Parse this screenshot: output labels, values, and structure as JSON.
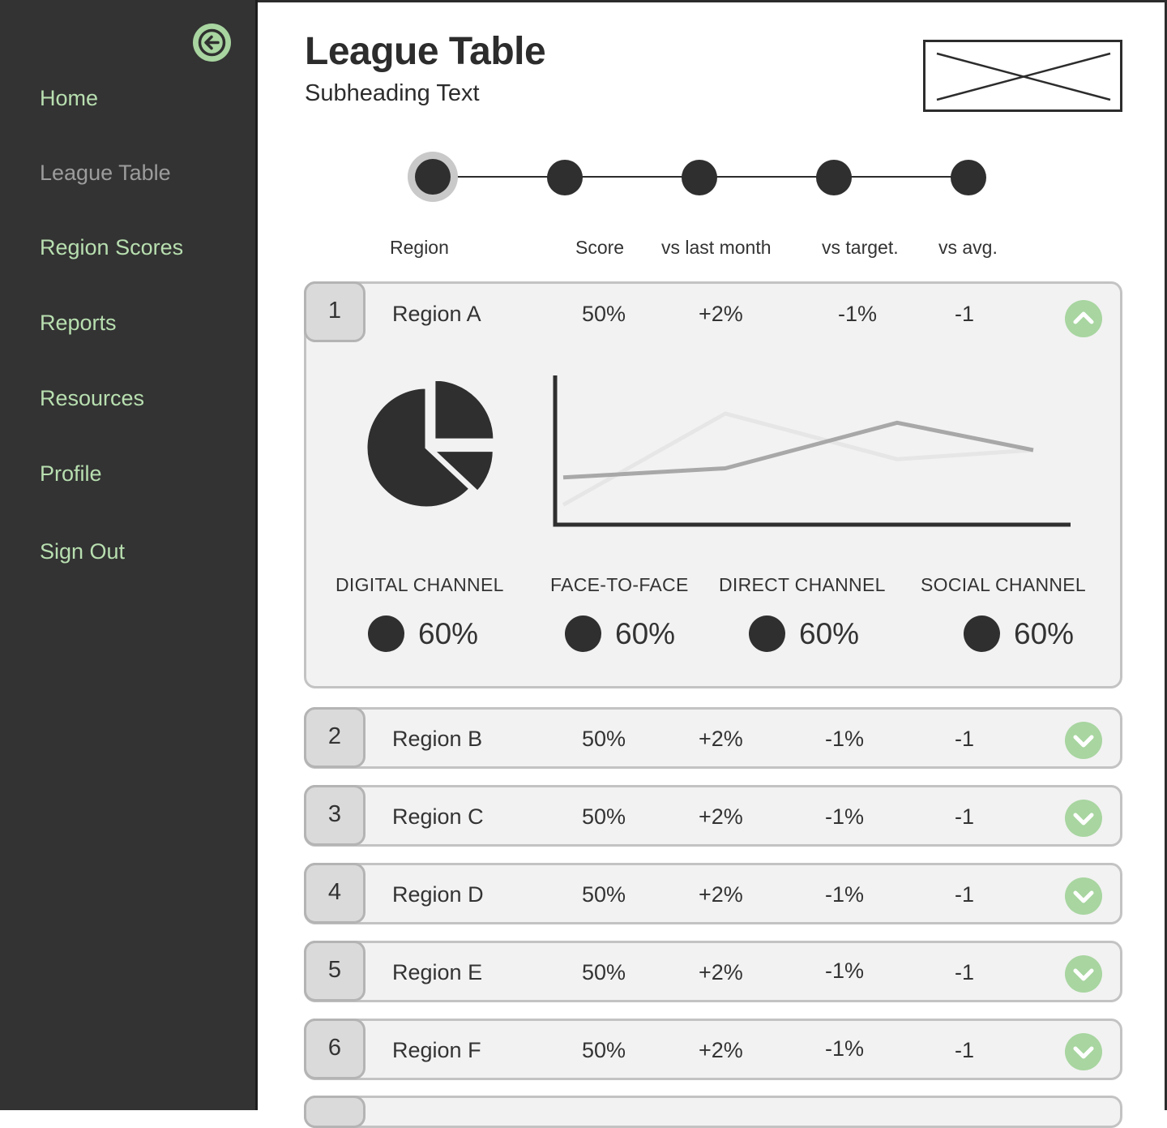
{
  "sidebar": {
    "back_icon": "arrow-left-icon",
    "items": [
      {
        "label": "Home",
        "active": false
      },
      {
        "label": "League Table",
        "active": true
      },
      {
        "label": "Region Scores",
        "active": false
      },
      {
        "label": "Reports",
        "active": false
      },
      {
        "label": "Resources",
        "active": false
      },
      {
        "label": "Profile",
        "active": false
      },
      {
        "label": "Sign Out",
        "active": false
      }
    ]
  },
  "header": {
    "title": "League Table",
    "subtitle": "Subheading Text",
    "logo_icon": "image-placeholder-icon"
  },
  "stepper": {
    "steps": 5,
    "active_index": 0
  },
  "table": {
    "columns": [
      "Region",
      "Score",
      "vs last month",
      "vs target.",
      "vs avg."
    ],
    "rows": [
      {
        "rank": "1",
        "region": "Region A",
        "score": "50%",
        "vs_last_month": "+2%",
        "vs_target": "-1%",
        "vs_avg": "-1",
        "expanded": true
      },
      {
        "rank": "2",
        "region": "Region B",
        "score": "50%",
        "vs_last_month": "+2%",
        "vs_target": "-1%",
        "vs_avg": "-1",
        "expanded": false
      },
      {
        "rank": "3",
        "region": "Region C",
        "score": "50%",
        "vs_last_month": "+2%",
        "vs_target": "-1%",
        "vs_avg": "-1",
        "expanded": false
      },
      {
        "rank": "4",
        "region": "Region D",
        "score": "50%",
        "vs_last_month": "+2%",
        "vs_target": "-1%",
        "vs_avg": "-1",
        "expanded": false
      },
      {
        "rank": "5",
        "region": "Region E",
        "score": "50%",
        "vs_last_month": "+2%",
        "vs_target": "-1%",
        "vs_avg": "-1",
        "expanded": false
      },
      {
        "rank": "6",
        "region": "Region F",
        "score": "50%",
        "vs_last_month": "+2%",
        "vs_target": "-1%",
        "vs_avg": "-1",
        "expanded": false
      }
    ],
    "expanded_detail": {
      "channels": [
        {
          "label": "DIGITAL CHANNEL",
          "value": "60%"
        },
        {
          "label": "FACE-TO-FACE",
          "value": "60%"
        },
        {
          "label": "DIRECT CHANNEL",
          "value": "60%"
        },
        {
          "label": "SOCIAL CHANNEL",
          "value": "60%"
        }
      ]
    }
  },
  "colors": {
    "sidebar_bg": "#333333",
    "accent_green": "#a8d5a0",
    "nav_text": "#b8dfb0",
    "nav_active": "#9c9c9c",
    "card_bg": "#f2f2f2",
    "dark": "#2f2f2f"
  },
  "chart_data": [
    {
      "type": "pie",
      "values": [
        25,
        12,
        63
      ]
    },
    {
      "type": "line",
      "x": [
        1,
        2,
        3,
        4
      ],
      "series": [
        {
          "values": [
            3,
            4,
            9,
            6
          ],
          "color": "#a8a8a8"
        },
        {
          "values": [
            0,
            10,
            5,
            6
          ],
          "color": "#e6e6e6"
        }
      ],
      "ylim": [
        -2,
        14
      ]
    }
  ]
}
